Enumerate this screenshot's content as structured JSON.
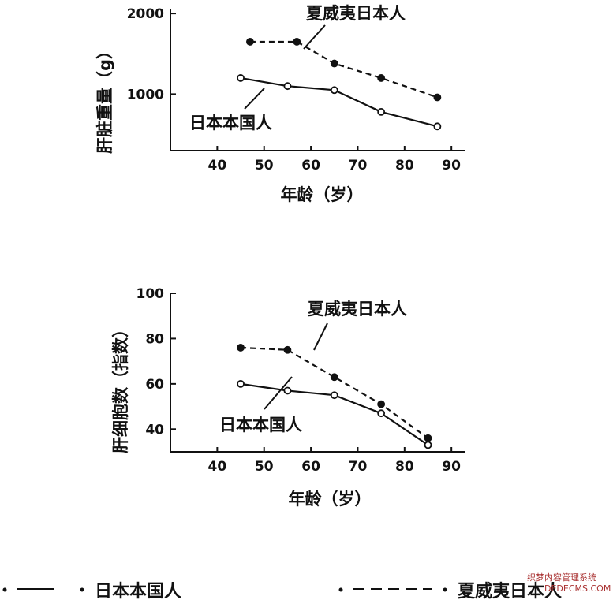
{
  "chart_data": [
    {
      "type": "line",
      "ylabel": "肝脏重量（g）",
      "xlabel": "年龄（岁）",
      "x_ticks": [
        40,
        50,
        60,
        70,
        80,
        90
      ],
      "y_ticks": [
        1000,
        2000
      ],
      "xlim": [
        30,
        93
      ],
      "ylim": [
        300,
        2050
      ],
      "grid": false,
      "series": [
        {
          "name": "日本本国人",
          "style": "solid",
          "marker": "open-circle",
          "x": [
            45,
            55,
            65,
            75,
            87
          ],
          "y": [
            1200,
            1100,
            1050,
            780,
            600
          ]
        },
        {
          "name": "夏威夷日本人",
          "style": "dashed",
          "marker": "filled-circle",
          "x": [
            47,
            57,
            65,
            75,
            87
          ],
          "y": [
            1650,
            1650,
            1380,
            1200,
            960
          ]
        }
      ]
    },
    {
      "type": "line",
      "ylabel": "肝细胞数（指数）",
      "xlabel": "年龄（岁）",
      "x_ticks": [
        40,
        50,
        60,
        70,
        80,
        90
      ],
      "y_ticks": [
        40,
        60,
        80,
        100
      ],
      "xlim": [
        30,
        93
      ],
      "ylim": [
        30,
        100
      ],
      "grid": false,
      "series": [
        {
          "name": "日本本国人",
          "style": "solid",
          "marker": "open-circle",
          "x": [
            45,
            55,
            65,
            75,
            85
          ],
          "y": [
            60,
            57,
            55,
            47,
            33
          ]
        },
        {
          "name": "夏威夷日本人",
          "style": "dashed",
          "marker": "filled-circle",
          "x": [
            45,
            55,
            65,
            75,
            85
          ],
          "y": [
            76,
            75,
            63,
            51,
            36
          ]
        }
      ]
    }
  ],
  "legend": {
    "solid_label": "日本本国人",
    "dashed_label": "夏威夷日本人"
  },
  "watermark": {
    "line1": "织梦内容管理系统",
    "line2": "DEDECMS.COM"
  }
}
